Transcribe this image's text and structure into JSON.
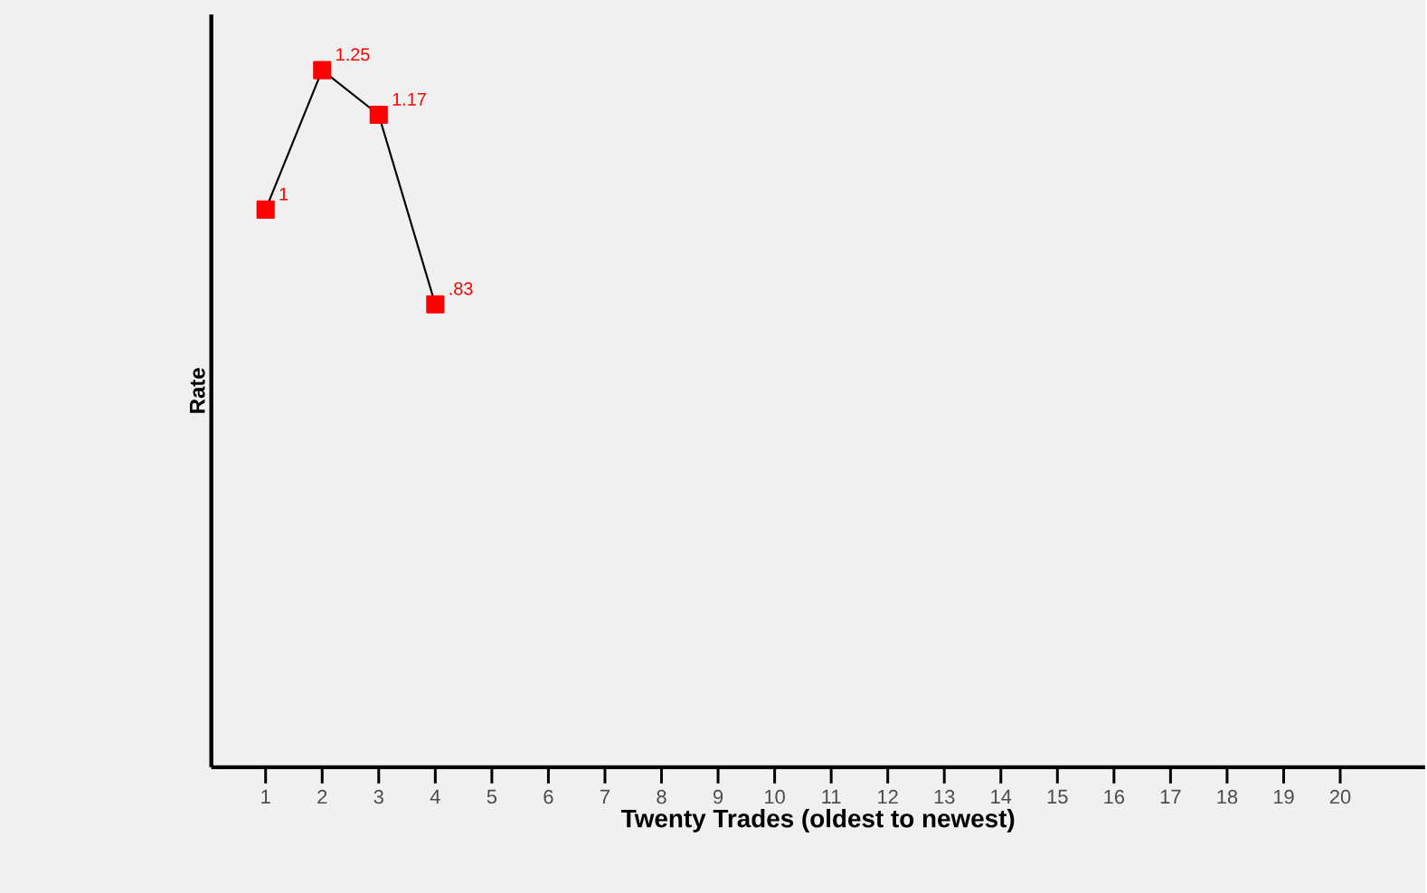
{
  "chart_data": {
    "type": "line",
    "categories": [
      "1",
      "2",
      "3",
      "4",
      "5",
      "6",
      "7",
      "8",
      "9",
      "10",
      "11",
      "12",
      "13",
      "14",
      "15",
      "16",
      "17",
      "18",
      "19",
      "20"
    ],
    "xlabel": "Twenty Trades (oldest to newest)",
    "ylabel": "Rate",
    "series": [
      {
        "color": "#ff0000",
        "values": [
          1,
          1.25,
          1.17,
          0.83,
          null,
          null,
          null,
          null,
          null,
          null,
          null,
          null,
          null,
          null,
          null,
          null,
          null,
          null,
          null,
          null
        ],
        "value_labels": [
          "1",
          "1.25",
          "1.17",
          ".83",
          null,
          null,
          null,
          null,
          null,
          null,
          null,
          null,
          null,
          null,
          null,
          null,
          null,
          null,
          null,
          null
        ]
      }
    ],
    "ylim": [
      0,
      1.35
    ],
    "marker": "square",
    "grid": false,
    "tick_labels": "x"
  }
}
